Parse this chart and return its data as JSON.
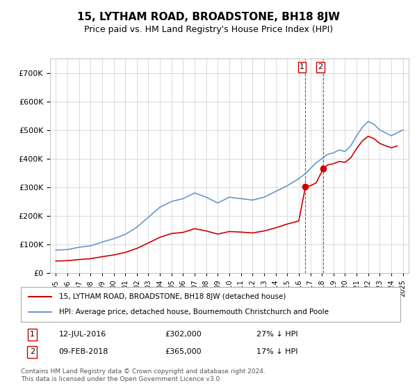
{
  "title": "15, LYTHAM ROAD, BROADSTONE, BH18 8JW",
  "subtitle": "Price paid vs. HM Land Registry's House Price Index (HPI)",
  "ylabel_ticks": [
    "£0",
    "£100K",
    "£200K",
    "£300K",
    "£400K",
    "£500K",
    "£600K",
    "£700K"
  ],
  "ylim": [
    0,
    750000
  ],
  "sale1_date": "12-JUL-2016",
  "sale1_price": 302000,
  "sale1_label": "27% ↓ HPI",
  "sale2_date": "09-FEB-2018",
  "sale2_price": 365000,
  "sale2_label": "17% ↓ HPI",
  "legend_line1": "15, LYTHAM ROAD, BROADSTONE, BH18 8JW (detached house)",
  "legend_line2": "HPI: Average price, detached house, Bournemouth Christchurch and Poole",
  "footnote": "Contains HM Land Registry data © Crown copyright and database right 2024.\nThis data is licensed under the Open Government Licence v3.0.",
  "line_color_red": "#cc0000",
  "line_color_blue": "#6699cc",
  "grid_color": "#cccccc",
  "sale_vline_color": "#cc0000",
  "background_color": "#ffffff",
  "x_start_year": 1995,
  "x_end_year": 2025
}
